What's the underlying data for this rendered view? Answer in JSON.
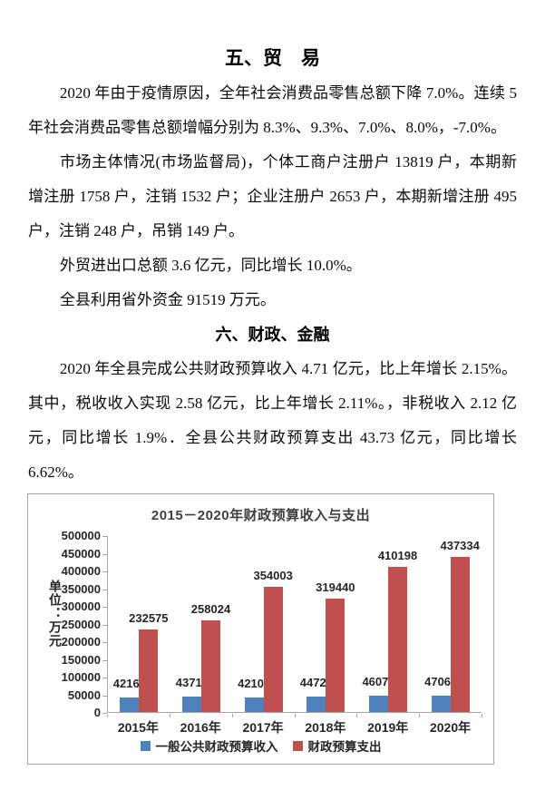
{
  "doc": {
    "heading_trade": "五、贸　易",
    "para_retail": "2020 年由于疫情原因，全年社会消费品零售总额下降 7.0%。连续 5 年社会消费品零售总额增幅分别为 8.3%、9.3%、7.0%、8.0%，-7.0%。",
    "para_market": "市场主体情况(市场监督局)，个体工商户注册户 13819 户，本期新增注册 1758 户，注销 1532 户；企业注册户 2653 户，本期新增注册 495 户，注销 248 户，吊销 149 户。",
    "para_trade_total": "外贸进出口总额 3.6 亿元，同比增长 10.0%。",
    "para_foreign_capital": "全县利用省外资金 91519 万元。",
    "heading_finance": "六、财政、金融",
    "para_finance": "2020 年全县完成公共财政预算收入 4.71 亿元，比上年增长 2.15%。其中，税收收入实现 2.58 亿元，比上年增长 2.11%。，非税收入 2.12 亿元，同比增长 1.9%．全县公共财政预算支出 43.73 亿元，同比增长 6.62%。"
  },
  "chart_data": {
    "type": "bar",
    "title": "2015－2020年财政预算收入与支出",
    "unit_label": "单位：万元",
    "categories": [
      "2015年",
      "2016年",
      "2017年",
      "2018年",
      "2019年",
      "2020年"
    ],
    "series": [
      {
        "name": "一般公共财政预算收入",
        "color": "#4F81BD",
        "values": [
          42163,
          43711,
          42103,
          44728,
          46073,
          47063
        ]
      },
      {
        "name": "财政预算支出",
        "color": "#C0504D",
        "values": [
          232575,
          258024,
          354003,
          319440,
          410198,
          437334
        ]
      }
    ],
    "ylim": [
      0,
      500000
    ],
    "ytick_step": 50000,
    "grid": false,
    "legend_position": "bottom",
    "axis_color": "#a6a6a6"
  }
}
